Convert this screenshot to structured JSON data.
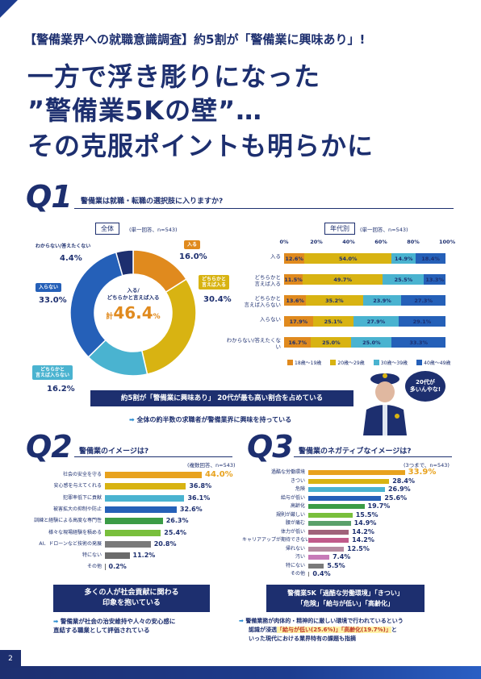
{
  "headline": "【警備業界への就職意識調査】約5割が「警備業に興味あり」!",
  "title_lines": [
    "一方で浮き彫りになった",
    "”警備業5Kの壁”…",
    "その克服ポイントも明らかに"
  ],
  "page_number": "2",
  "q1": {
    "label": "Q1",
    "question": "警備業は就職・転職の選択肢に入りますか?",
    "pie": {
      "tag": "全体",
      "note": "(単一回答、n=543)",
      "center_label": "入る/\nどちらかと言えば入る",
      "center_total_prefix": "計",
      "center_total_value": "46.4",
      "center_total_unit": "%",
      "slices": [
        {
          "label": "入る",
          "value": "16.0%",
          "pct": 16.0,
          "color": "#e08a1e"
        },
        {
          "label": "どちらかと\n言えば入る",
          "value": "30.4%",
          "pct": 30.4,
          "color": "#d8b312"
        },
        {
          "label": "どちらかと\n言えば入らない",
          "value": "16.2%",
          "pct": 16.2,
          "color": "#4ab3d0"
        },
        {
          "label": "入らない",
          "value": "33.0%",
          "pct": 33.0,
          "color": "#2560b8"
        },
        {
          "label": "わからない/答えたくない",
          "value": "4.4%",
          "pct": 4.4,
          "color": "#1d2f6f"
        }
      ]
    },
    "age": {
      "tag": "年代別",
      "note": "(単一回答、n=543)",
      "axis": [
        "0%",
        "20%",
        "40%",
        "60%",
        "80%",
        "100%"
      ],
      "rows": [
        {
          "label": "入る",
          "segs": [
            [
              "12.6%",
              12.6
            ],
            [
              "54.0%",
              54.0
            ],
            [
              "14.9%",
              14.9
            ],
            [
              "18.4%",
              18.4
            ]
          ]
        },
        {
          "label": "どちらかと\n言えば入る",
          "segs": [
            [
              "11.5%",
              11.5
            ],
            [
              "49.7%",
              49.7
            ],
            [
              "25.5%",
              25.5
            ],
            [
              "13.3%",
              13.3
            ]
          ]
        },
        {
          "label": "どちらかと\n言えば入らない",
          "segs": [
            [
              "13.6%",
              13.6
            ],
            [
              "35.2%",
              35.2
            ],
            [
              "23.9%",
              23.9
            ],
            [
              "27.3%",
              27.3
            ]
          ]
        },
        {
          "label": "入らない",
          "segs": [
            [
              "17.9%",
              17.9
            ],
            [
              "25.1%",
              25.1
            ],
            [
              "27.9%",
              27.9
            ],
            [
              "29.1%",
              29.1
            ]
          ]
        },
        {
          "label": "わからない/答えたくない",
          "segs": [
            [
              "16.7%",
              16.7
            ],
            [
              "25.0%",
              25.0
            ],
            [
              "25.0%",
              25.0
            ],
            [
              "33.3%",
              33.3
            ]
          ]
        }
      ],
      "legend": [
        {
          "label": "18歳〜19歳",
          "color": "#e08a1e"
        },
        {
          "label": "20歳〜29歳",
          "color": "#d8b312"
        },
        {
          "label": "30歳〜39歳",
          "color": "#4ab3d0"
        },
        {
          "label": "40歳〜49歳",
          "color": "#2560b8"
        }
      ]
    },
    "bubble": "20代が\n多いんやな!",
    "summary": "約5割が「警備業に興味あり」 20代が最も高い割合を占めている",
    "summary_note": "全体の約半数の求職者が警備業界に興味を持っている"
  },
  "q2": {
    "label": "Q2",
    "question": "警備業のイメージは?",
    "note": "(複数回答、n=543)",
    "bars": [
      {
        "label": "社会の安全を守る",
        "value": "44.0%",
        "pct": 44.0,
        "color": "#e8a21e",
        "hl": true
      },
      {
        "label": "安心感を与えてくれる",
        "value": "36.8%",
        "pct": 36.8,
        "color": "#d8b312"
      },
      {
        "label": "犯罪率低下に貢献",
        "value": "36.1%",
        "pct": 36.1,
        "color": "#4ab3d0"
      },
      {
        "label": "被害拡大の抑制や防止",
        "value": "32.6%",
        "pct": 32.6,
        "color": "#2560b8"
      },
      {
        "label": "訓練と経験による高度な専門性",
        "value": "26.3%",
        "pct": 26.3,
        "color": "#3b9c46"
      },
      {
        "label": "様々な現場経験を積める",
        "value": "25.4%",
        "pct": 25.4,
        "color": "#79bf3c"
      },
      {
        "label": "AI、ドローンなど技術の発展",
        "value": "20.8%",
        "pct": 20.8,
        "color": "#7a7a7a"
      },
      {
        "label": "特にない",
        "value": "11.2%",
        "pct": 11.2,
        "color": "#6b6b6b"
      },
      {
        "label": "その他",
        "value": "0.2%",
        "pct": 0.2,
        "color": "#6b6b6b"
      }
    ],
    "box": "多くの人が社会貢献に関わる\n印象を抱いている",
    "box_note": "警備業が社会の治安維持や人々の安心感に\n直結する職業として評価されている"
  },
  "q3": {
    "label": "Q3",
    "question": "警備業のネガティブなイメージは?",
    "note": "(3つまで、n=543)",
    "bars": [
      {
        "label": "過酷な労働環境",
        "value": "33.9%",
        "pct": 33.9,
        "color": "#e8a21e",
        "hl": true
      },
      {
        "label": "きつい",
        "value": "28.4%",
        "pct": 28.4,
        "color": "#d8b312"
      },
      {
        "label": "危険",
        "value": "26.9%",
        "pct": 26.9,
        "color": "#4ab3d0"
      },
      {
        "label": "給与が低い",
        "value": "25.6%",
        "pct": 25.6,
        "color": "#2560b8"
      },
      {
        "label": "高齢化",
        "value": "19.7%",
        "pct": 19.7,
        "color": "#3b9c46"
      },
      {
        "label": "規則が厳しい",
        "value": "15.5%",
        "pct": 15.5,
        "color": "#79bf3c"
      },
      {
        "label": "腰が痛む",
        "value": "14.9%",
        "pct": 14.9,
        "color": "#5aa06a"
      },
      {
        "label": "体力が低い",
        "value": "14.2%",
        "pct": 14.2,
        "color": "#a0627a"
      },
      {
        "label": "キャリアアップが期待できない",
        "value": "14.2%",
        "pct": 14.2,
        "color": "#c05a8a"
      },
      {
        "label": "帰れない",
        "value": "12.5%",
        "pct": 12.5,
        "color": "#b58aa0"
      },
      {
        "label": "汚い",
        "value": "7.4%",
        "pct": 7.4,
        "color": "#c77ab8"
      },
      {
        "label": "特にない",
        "value": "5.5%",
        "pct": 5.5,
        "color": "#7a7a7a"
      },
      {
        "label": "その他",
        "value": "0.4%",
        "pct": 0.4,
        "color": "#7a7a7a"
      }
    ],
    "box": "警備業5K「過酷な労働環境」「きつい」\n「危険」「給与が低い」「高齢化」",
    "box_note_1": "警備業務が肉体的・精神的に厳しい環境で行われているという",
    "box_note_2a": "認識が浸透",
    "box_note_2b": "「給与が低い(25.6%)」「高齢化(19.7%)」",
    "box_note_2c": "と",
    "box_note_3": "いった現代における業界特有の課題も指摘"
  }
}
